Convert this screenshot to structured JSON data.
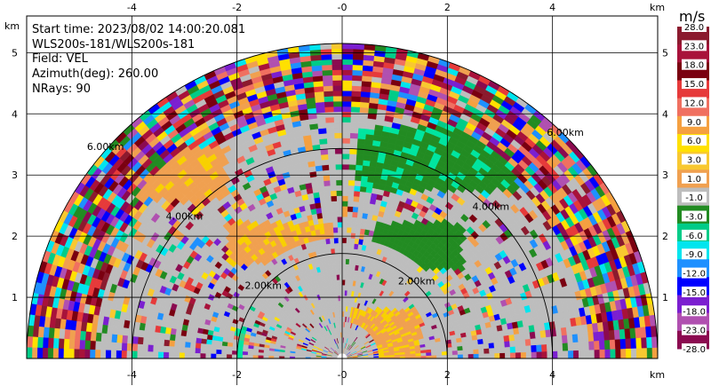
{
  "info": {
    "start_time": "Start time: 2023/08/02 14:00:20.081",
    "radar": "WLS200s-181/WLS200s-181",
    "field": "Field: VEL",
    "azimuth": "Azimuth(deg): 260.00",
    "nrays": "NRays: 90"
  },
  "chart_data": {
    "type": "heatmap",
    "subtype": "rhi-ppi-sector",
    "field": "VEL",
    "azimuth_deg": 260.0,
    "nrays": 90,
    "x_unit": "km",
    "y_unit": "km",
    "xlim": [
      -6,
      6
    ],
    "ylim": [
      0,
      5.6
    ],
    "x_ticks": [
      "-4",
      "-2",
      "-0",
      "2",
      "4"
    ],
    "y_ticks": [
      "1",
      "2",
      "3",
      "4",
      "5"
    ],
    "range_rings": [
      {
        "r": 2,
        "label": "2.00km"
      },
      {
        "r": 4,
        "label": "4.00km"
      },
      {
        "r": 6,
        "label": "6.00km"
      }
    ],
    "max_range_km": 6.0,
    "colorbar": {
      "unit": "m/s",
      "labels": [
        "28.0",
        "23.0",
        "18.0",
        "15.0",
        "12.0",
        "9.0",
        "6.0",
        "3.0",
        "1.0",
        "-1.0",
        "-3.0",
        "-6.0",
        "-9.0",
        "-12.0",
        "-15.0",
        "-18.0",
        "-23.0",
        "-28.0"
      ],
      "colors": [
        "#8b1a2e",
        "#a8123a",
        "#7a0010",
        "#e63a3a",
        "#f07060",
        "#f5a040",
        "#ffe000",
        "#f8c830",
        "#f0a050",
        "#bdbdbd",
        "#228b22",
        "#00cc88",
        "#00e5ee",
        "#1e90ff",
        "#0000ff",
        "#7b1fd0",
        "#b050b0",
        "#8b0a50"
      ]
    }
  }
}
